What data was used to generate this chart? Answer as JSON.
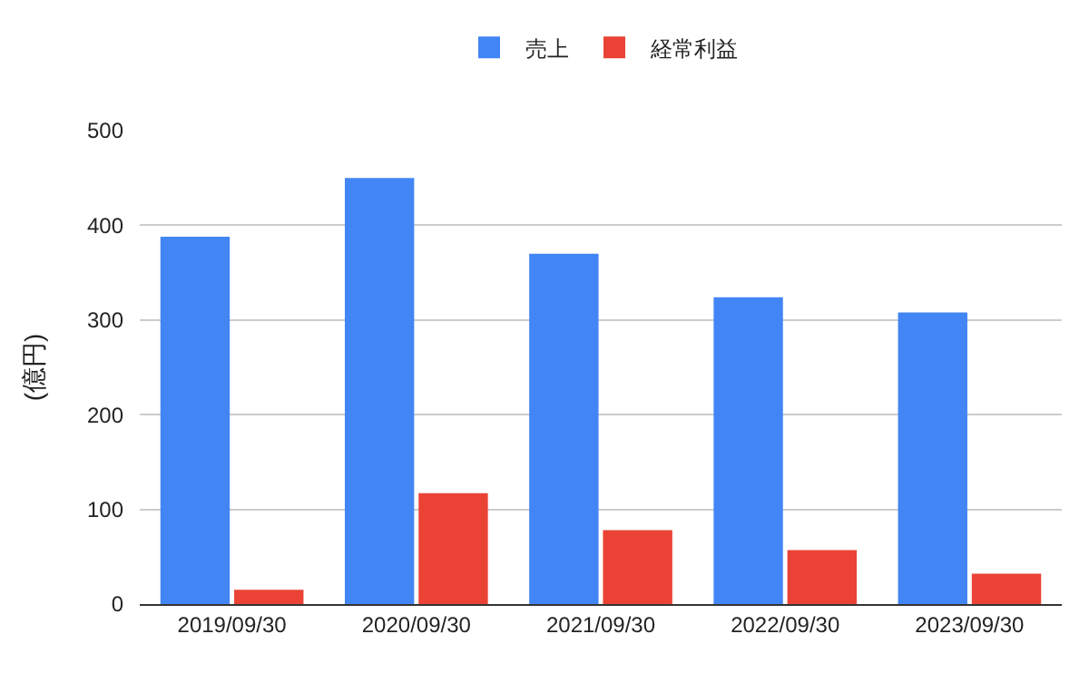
{
  "chart_data": {
    "type": "bar",
    "ylabel": "(億円)",
    "categories": [
      "2019/09/30",
      "2020/09/30",
      "2021/09/30",
      "2022/09/30",
      "2023/09/30"
    ],
    "series": [
      {
        "name": "売上",
        "color": "#4285f4",
        "values": [
          388,
          450,
          370,
          324,
          308
        ]
      },
      {
        "name": "経常利益",
        "color": "#ea4335",
        "values": [
          15,
          117,
          78,
          57,
          32
        ]
      }
    ],
    "ylim": [
      0,
      500
    ],
    "yticks": [
      0,
      100,
      200,
      300,
      400,
      500
    ],
    "grid": "y",
    "legend": "top"
  }
}
